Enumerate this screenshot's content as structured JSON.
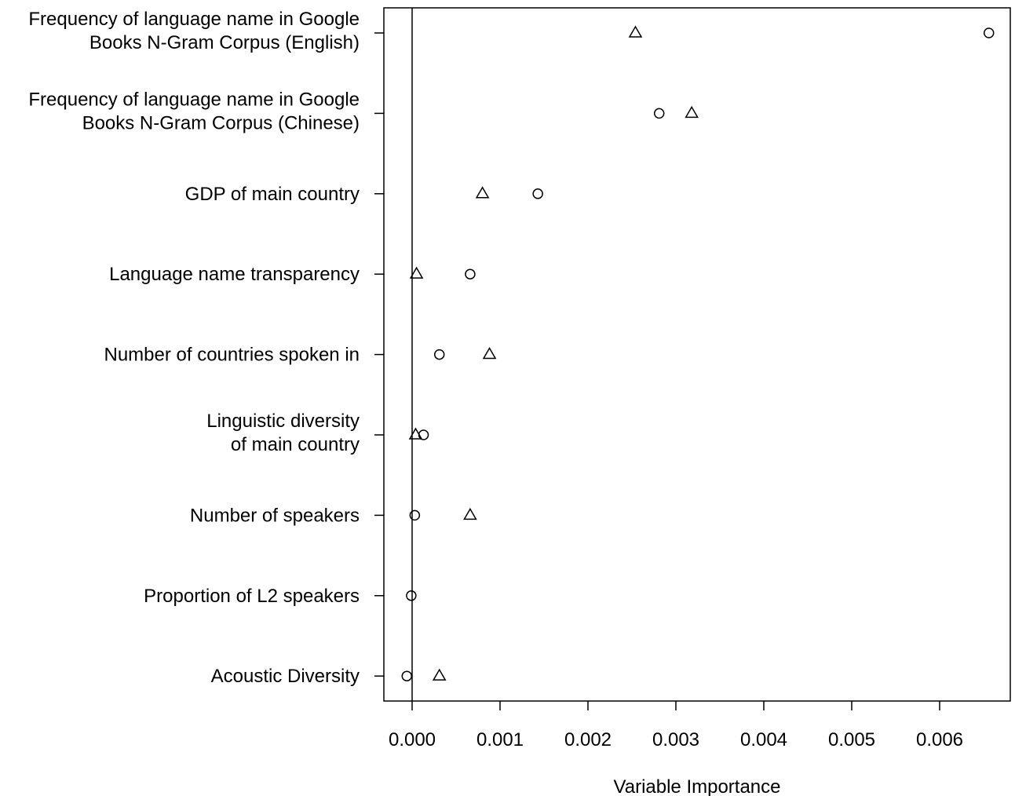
{
  "chart_data": {
    "type": "scatter",
    "title": "",
    "xlabel": "Variable Importance",
    "ylabel": "",
    "xlim": [
      -0.0003,
      0.0068
    ],
    "x_ticks": [
      "0.000",
      "0.001",
      "0.002",
      "0.003",
      "0.004",
      "0.005",
      "0.006"
    ],
    "x_tick_values": [
      0,
      0.001,
      0.002,
      0.003,
      0.004,
      0.005,
      0.006
    ],
    "reference_line_x": 0,
    "grid": false,
    "legend": "none",
    "categories": [
      [
        "Frequency of language name in Google",
        "Books N-Gram Corpus (English)"
      ],
      [
        "Frequency of language name in Google",
        "Books N-Gram Corpus (Chinese)"
      ],
      [
        "GDP of main country"
      ],
      [
        "Language name transparency"
      ],
      [
        "Number of countries spoken in"
      ],
      [
        "Linguistic diversity",
        "of main country"
      ],
      [
        "Number of speakers"
      ],
      [
        "Proportion of L2 speakers"
      ],
      [
        "Acoustic Diversity"
      ]
    ],
    "series": [
      {
        "marker": "circle",
        "values": [
          0.00656,
          0.00281,
          0.00143,
          0.00066,
          0.00031,
          0.00013,
          3e-05,
          -1e-05,
          -6e-05
        ]
      },
      {
        "marker": "triangle",
        "values": [
          0.00254,
          0.00318,
          0.0008,
          5e-05,
          0.00088,
          4e-05,
          0.00066,
          null,
          0.00031
        ]
      }
    ]
  }
}
